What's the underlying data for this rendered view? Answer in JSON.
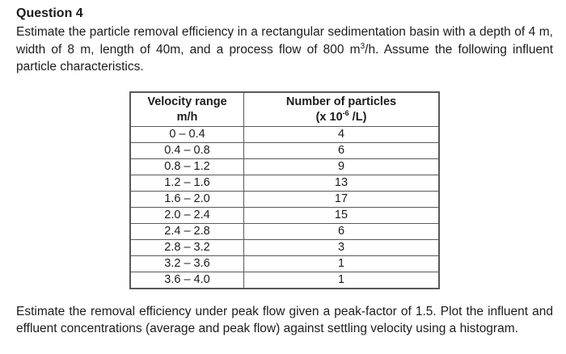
{
  "page": {
    "title": "Question 4",
    "intro": {
      "part1": "Estimate the particle removal efficiency in a rectangular sedimentation basin with a depth of 4 m, width of 8 m, length of 40m, and a process flow of 800 m",
      "sup": "3",
      "part2": "/h. Assume the following influent particle characteristics."
    },
    "outro": "Estimate the removal efficiency under peak flow given a peak-factor of 1.5. Plot the influent and effluent concentrations (average and peak flow) against settling velocity using a histogram."
  },
  "table": {
    "header": {
      "col1_line1": "Velocity range",
      "col1_line2": "m/h",
      "col2_line1": "Number of particles",
      "col2_line2_part1": "(x 10",
      "col2_line2_sup": "-6",
      "col2_line2_part2": " /L)"
    },
    "rows": [
      {
        "range": "0 – 0.4",
        "count": "4"
      },
      {
        "range": "0.4 – 0.8",
        "count": "6"
      },
      {
        "range": "0.8 – 1.2",
        "count": "9"
      },
      {
        "range": "1.2 – 1.6",
        "count": "13"
      },
      {
        "range": "1.6 – 2.0",
        "count": "17"
      },
      {
        "range": "2.0 – 2.4",
        "count": "15"
      },
      {
        "range": "2.4 – 2.8",
        "count": "6"
      },
      {
        "range": "2.8 – 3.2",
        "count": "3"
      },
      {
        "range": "3.2 – 3.6",
        "count": "1"
      },
      {
        "range": "3.6 – 4.0",
        "count": "1"
      }
    ]
  }
}
